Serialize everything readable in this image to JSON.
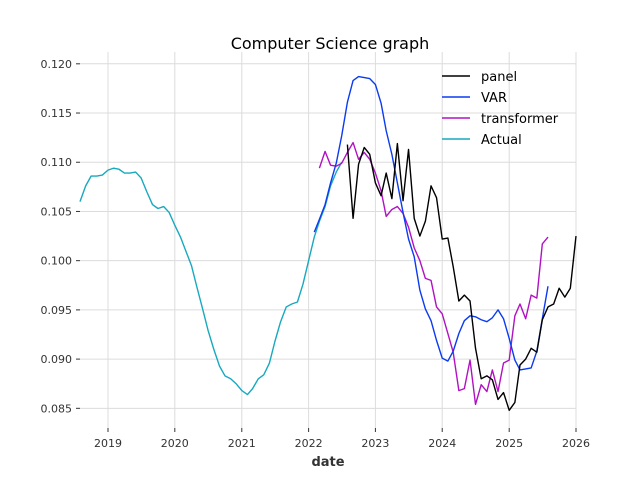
{
  "chart_data": {
    "type": "line",
    "title": "Computer Science graph",
    "xlabel": "date",
    "ylabel": "",
    "xlim": [
      "2018-08-01",
      "2026-01-01"
    ],
    "ylim": [
      0.083,
      0.1212
    ],
    "x_ticks": [
      "2019",
      "2020",
      "2021",
      "2022",
      "2023",
      "2024",
      "2025",
      "2026"
    ],
    "y_ticks": [
      "0.085",
      "0.090",
      "0.095",
      "0.100",
      "0.105",
      "0.110",
      "0.115",
      "0.120"
    ],
    "grid": true,
    "legend_position": "top-right",
    "series": [
      {
        "name": "panel",
        "color": "#000000",
        "points": [
          [
            "2022-08-01",
            0.1118
          ],
          [
            "2022-09-01",
            0.1043
          ],
          [
            "2022-10-01",
            0.1098
          ],
          [
            "2022-11-01",
            0.1115
          ],
          [
            "2022-12-01",
            0.1108
          ],
          [
            "2023-01-01",
            0.1079
          ],
          [
            "2023-02-01",
            0.1066
          ],
          [
            "2023-03-01",
            0.1089
          ],
          [
            "2023-04-01",
            0.1063
          ],
          [
            "2023-05-01",
            0.1119
          ],
          [
            "2023-06-01",
            0.1061
          ],
          [
            "2023-07-01",
            0.1113
          ],
          [
            "2023-08-01",
            0.1043
          ],
          [
            "2023-09-01",
            0.1025
          ],
          [
            "2023-10-01",
            0.104
          ],
          [
            "2023-11-01",
            0.1076
          ],
          [
            "2023-12-01",
            0.1064
          ],
          [
            "2024-01-01",
            0.1022
          ],
          [
            "2024-02-01",
            0.1023
          ],
          [
            "2024-03-01",
            0.0994
          ],
          [
            "2024-04-01",
            0.0959
          ],
          [
            "2024-05-01",
            0.0965
          ],
          [
            "2024-06-01",
            0.0959
          ],
          [
            "2024-07-01",
            0.0911
          ],
          [
            "2024-08-01",
            0.088
          ],
          [
            "2024-09-01",
            0.0883
          ],
          [
            "2024-10-01",
            0.0879
          ],
          [
            "2024-11-01",
            0.0859
          ],
          [
            "2024-12-01",
            0.0866
          ],
          [
            "2025-01-01",
            0.0848
          ],
          [
            "2025-02-01",
            0.0856
          ],
          [
            "2025-03-01",
            0.0894
          ],
          [
            "2025-04-01",
            0.09
          ],
          [
            "2025-05-01",
            0.0911
          ],
          [
            "2025-06-01",
            0.0907
          ],
          [
            "2025-07-01",
            0.094
          ],
          [
            "2025-08-01",
            0.0953
          ],
          [
            "2025-09-01",
            0.0956
          ],
          [
            "2025-10-01",
            0.0972
          ],
          [
            "2025-11-01",
            0.0963
          ],
          [
            "2025-12-01",
            0.0972
          ],
          [
            "2026-01-01",
            0.1025
          ]
        ]
      },
      {
        "name": "VAR",
        "color": "#0b3bf0",
        "points": [
          [
            "2022-02-01",
            0.1029
          ],
          [
            "2022-03-01",
            0.1042
          ],
          [
            "2022-04-01",
            0.1057
          ],
          [
            "2022-05-01",
            0.1079
          ],
          [
            "2022-06-01",
            0.1099
          ],
          [
            "2022-07-01",
            0.1127
          ],
          [
            "2022-08-01",
            0.1161
          ],
          [
            "2022-09-01",
            0.1183
          ],
          [
            "2022-10-01",
            0.1187
          ],
          [
            "2022-11-01",
            0.1186
          ],
          [
            "2022-12-01",
            0.1185
          ],
          [
            "2023-01-01",
            0.1179
          ],
          [
            "2023-02-01",
            0.116
          ],
          [
            "2023-03-01",
            0.1132
          ],
          [
            "2023-04-01",
            0.1108
          ],
          [
            "2023-05-01",
            0.1079
          ],
          [
            "2023-06-01",
            0.1049
          ],
          [
            "2023-07-01",
            0.1022
          ],
          [
            "2023-08-01",
            0.1004
          ],
          [
            "2023-09-01",
            0.097
          ],
          [
            "2023-10-01",
            0.0951
          ],
          [
            "2023-11-01",
            0.0939
          ],
          [
            "2023-12-01",
            0.0919
          ],
          [
            "2024-01-01",
            0.0901
          ],
          [
            "2024-02-01",
            0.0898
          ],
          [
            "2024-03-01",
            0.0908
          ],
          [
            "2024-04-01",
            0.0926
          ],
          [
            "2024-05-01",
            0.0939
          ],
          [
            "2024-06-01",
            0.0944
          ],
          [
            "2024-07-01",
            0.0943
          ],
          [
            "2024-08-01",
            0.094
          ],
          [
            "2024-09-01",
            0.0938
          ],
          [
            "2024-10-01",
            0.0942
          ],
          [
            "2024-11-01",
            0.095
          ],
          [
            "2024-12-01",
            0.0941
          ],
          [
            "2025-01-01",
            0.0921
          ],
          [
            "2025-02-01",
            0.0899
          ],
          [
            "2025-03-01",
            0.0889
          ],
          [
            "2025-04-01",
            0.089
          ],
          [
            "2025-05-01",
            0.0891
          ],
          [
            "2025-06-01",
            0.0908
          ],
          [
            "2025-07-01",
            0.0941
          ],
          [
            "2025-08-01",
            0.0974
          ]
        ]
      },
      {
        "name": "transformer",
        "color": "#b012c2",
        "points": [
          [
            "2022-03-01",
            0.1094
          ],
          [
            "2022-04-01",
            0.1111
          ],
          [
            "2022-05-01",
            0.1097
          ],
          [
            "2022-06-01",
            0.1096
          ],
          [
            "2022-07-01",
            0.1099
          ],
          [
            "2022-08-01",
            0.111
          ],
          [
            "2022-09-01",
            0.112
          ],
          [
            "2022-10-01",
            0.1103
          ],
          [
            "2022-11-01",
            0.111
          ],
          [
            "2022-12-01",
            0.1103
          ],
          [
            "2023-01-01",
            0.1089
          ],
          [
            "2023-02-01",
            0.1071
          ],
          [
            "2023-03-01",
            0.1045
          ],
          [
            "2023-04-01",
            0.1052
          ],
          [
            "2023-05-01",
            0.1055
          ],
          [
            "2023-06-01",
            0.1048
          ],
          [
            "2023-07-01",
            0.1034
          ],
          [
            "2023-08-01",
            0.1013
          ],
          [
            "2023-09-01",
            0.1
          ],
          [
            "2023-10-01",
            0.0982
          ],
          [
            "2023-11-01",
            0.098
          ],
          [
            "2023-12-01",
            0.0953
          ],
          [
            "2024-01-01",
            0.0946
          ],
          [
            "2024-02-01",
            0.0926
          ],
          [
            "2024-03-01",
            0.0907
          ],
          [
            "2024-04-01",
            0.0868
          ],
          [
            "2024-05-01",
            0.087
          ],
          [
            "2024-06-01",
            0.0899
          ],
          [
            "2024-07-01",
            0.0854
          ],
          [
            "2024-08-01",
            0.0874
          ],
          [
            "2024-09-01",
            0.0867
          ],
          [
            "2024-10-01",
            0.0889
          ],
          [
            "2024-11-01",
            0.0867
          ],
          [
            "2024-12-01",
            0.0896
          ],
          [
            "2025-01-01",
            0.0899
          ],
          [
            "2025-02-01",
            0.0944
          ],
          [
            "2025-03-01",
            0.0956
          ],
          [
            "2025-04-01",
            0.0941
          ],
          [
            "2025-05-01",
            0.0965
          ],
          [
            "2025-06-01",
            0.0962
          ],
          [
            "2025-07-01",
            0.1017
          ],
          [
            "2025-08-01",
            0.1024
          ]
        ]
      },
      {
        "name": "Actual",
        "color": "#17a9bf",
        "points": [
          [
            "2018-08-01",
            0.106
          ],
          [
            "2018-09-01",
            0.1076
          ],
          [
            "2018-10-01",
            0.1086
          ],
          [
            "2018-11-01",
            0.1086
          ],
          [
            "2018-12-01",
            0.1087
          ],
          [
            "2019-01-01",
            0.1092
          ],
          [
            "2019-02-01",
            0.1094
          ],
          [
            "2019-03-01",
            0.1093
          ],
          [
            "2019-04-01",
            0.1089
          ],
          [
            "2019-05-01",
            0.1089
          ],
          [
            "2019-06-01",
            0.109
          ],
          [
            "2019-07-01",
            0.1084
          ],
          [
            "2019-08-01",
            0.107
          ],
          [
            "2019-09-01",
            0.1057
          ],
          [
            "2019-10-01",
            0.1053
          ],
          [
            "2019-11-01",
            0.1055
          ],
          [
            "2019-12-01",
            0.1049
          ],
          [
            "2020-01-01",
            0.1036
          ],
          [
            "2020-02-01",
            0.1024
          ],
          [
            "2020-03-01",
            0.101
          ],
          [
            "2020-04-01",
            0.0995
          ],
          [
            "2020-05-01",
            0.0973
          ],
          [
            "2020-06-01",
            0.0951
          ],
          [
            "2020-07-01",
            0.0929
          ],
          [
            "2020-08-01",
            0.091
          ],
          [
            "2020-09-01",
            0.0893
          ],
          [
            "2020-10-01",
            0.0883
          ],
          [
            "2020-11-01",
            0.088
          ],
          [
            "2020-12-01",
            0.0875
          ],
          [
            "2021-01-01",
            0.0868
          ],
          [
            "2021-02-01",
            0.0864
          ],
          [
            "2021-03-01",
            0.087
          ],
          [
            "2021-04-01",
            0.088
          ],
          [
            "2021-05-01",
            0.0884
          ],
          [
            "2021-06-01",
            0.0896
          ],
          [
            "2021-07-01",
            0.0918
          ],
          [
            "2021-08-01",
            0.0938
          ],
          [
            "2021-09-01",
            0.0953
          ],
          [
            "2021-10-01",
            0.0956
          ],
          [
            "2021-11-01",
            0.0958
          ],
          [
            "2021-12-01",
            0.0976
          ],
          [
            "2022-01-01",
            0.1
          ],
          [
            "2022-02-01",
            0.1024
          ],
          [
            "2022-03-01",
            0.104
          ],
          [
            "2022-04-01",
            0.1055
          ],
          [
            "2022-05-01",
            0.1076
          ],
          [
            "2022-06-01",
            0.109
          ],
          [
            "2022-07-01",
            0.11
          ]
        ]
      }
    ]
  }
}
